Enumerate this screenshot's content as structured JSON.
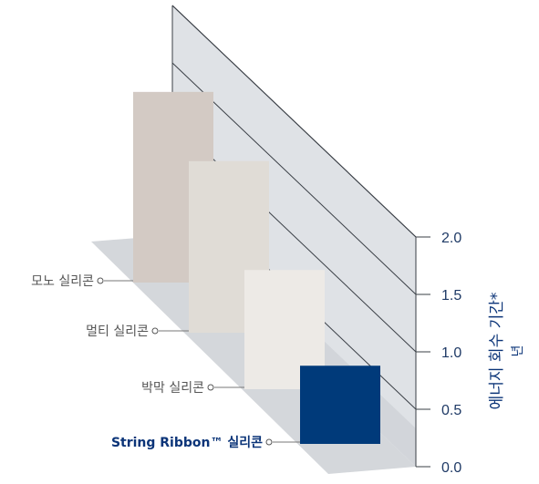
{
  "chart_data": {
    "type": "bar",
    "title": "",
    "categories": [
      "모노 실리콘",
      "멀티 실리콘",
      "박막 실리콘",
      "String Ribbon™ 실리콘"
    ],
    "values": [
      2.0,
      1.8,
      1.25,
      0.82
    ],
    "ylabel": "에너지 회수 기간*",
    "yunit": "년",
    "ylim": [
      0,
      2.0
    ],
    "yticks": [
      0.0,
      0.5,
      1.0,
      1.5,
      2.0
    ],
    "ytick_labels": [
      "0.0",
      "0.5",
      "1.0",
      "1.5",
      "2.0"
    ],
    "highlight_index": 3,
    "grid": true,
    "bar_colors": [
      "#d3cac4",
      "#e0dcd6",
      "#edeae6",
      "#003a7a"
    ]
  }
}
